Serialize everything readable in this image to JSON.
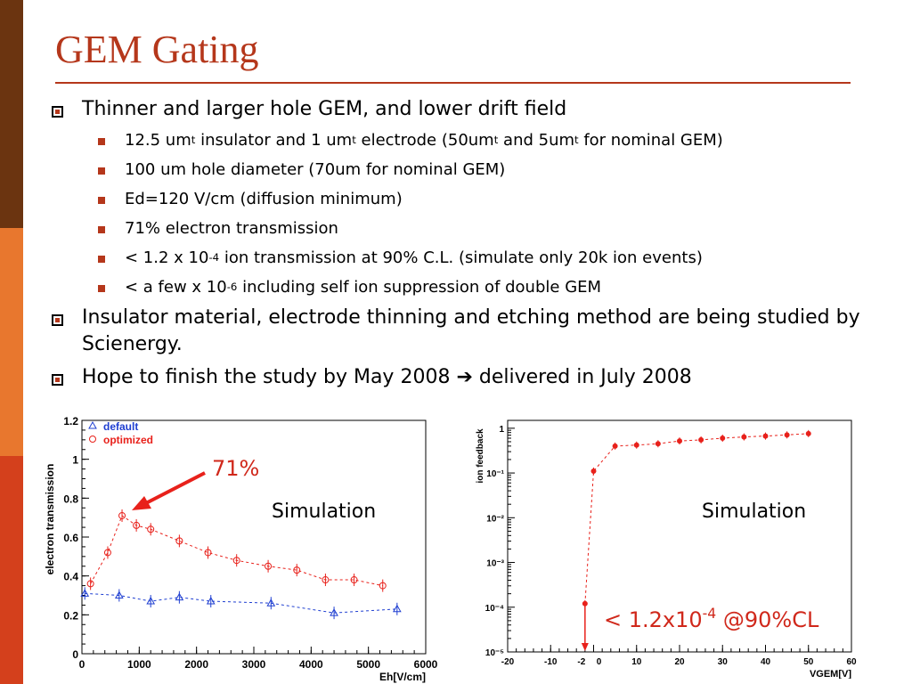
{
  "sidebar_colors": [
    "#6b3410",
    "#e8772e",
    "#d4401c"
  ],
  "title": "GEM Gating",
  "bullets": {
    "b1": "Thinner and larger hole GEM, and lower drift field",
    "s1_a": "12.5 um",
    "s1_sup1": "t",
    "s1_b": " insulator and 1 um",
    "s1_sup2": "t",
    "s1_c": " electrode (50um",
    "s1_sup3": "t",
    "s1_d": " and 5um",
    "s1_sup4": "t",
    "s1_e": " for nominal GEM)",
    "s2": "100 um hole diameter (70um for nominal GEM)",
    "s3": "Ed=120 V/cm (diffusion minimum)",
    "s4": "71% electron transmission",
    "s5_a": "< 1.2 x 10",
    "s5_sup": "-4",
    "s5_b": " ion transmission at 90% C.L. (simulate only 20k ion events)",
    "s6_a": "< a few x 10",
    "s6_sup": "-6",
    "s6_b": " including self ion suppression of double GEM",
    "b2": "Insulator material, electrode thinning and etching method are being studied by Scienergy.",
    "b3_a": "Hope to finish the study by May 2008 ",
    "b3_arrow": "➔",
    "b3_b": " delivered in July 2008"
  },
  "annotations": {
    "pct": "71%",
    "sim_left": "Simulation",
    "sim_right": "Simulation",
    "cl_a": "< 1.2x10",
    "cl_sup": "-4",
    "cl_b": " @90%CL"
  },
  "chart_data": [
    {
      "type": "scatter",
      "xlabel": "Eh[V/cm]",
      "ylabel": "electron transmission",
      "xlim": [
        0,
        6000
      ],
      "ylim": [
        0,
        1.2
      ],
      "x_ticks": [
        "0",
        "1000",
        "2000",
        "3000",
        "4000",
        "5000",
        "6000"
      ],
      "y_ticks": [
        "0",
        "0.2",
        "0.4",
        "0.6",
        "0.8",
        "1",
        "1.2"
      ],
      "legend": "top-left",
      "series": [
        {
          "name": "default",
          "marker": "triangle",
          "color": "#1f3fd1",
          "x": [
            50,
            650,
            1200,
            1700,
            2250,
            3300,
            4400,
            5500
          ],
          "y": [
            0.31,
            0.3,
            0.27,
            0.29,
            0.27,
            0.26,
            0.21,
            0.23
          ]
        },
        {
          "name": "optimized",
          "marker": "circle",
          "color": "#e8211b",
          "x": [
            150,
            450,
            700,
            950,
            1200,
            1700,
            2200,
            2700,
            3250,
            3750,
            4250,
            4750,
            5250
          ],
          "y": [
            0.36,
            0.52,
            0.71,
            0.66,
            0.64,
            0.58,
            0.52,
            0.48,
            0.45,
            0.43,
            0.38,
            0.38,
            0.35
          ]
        }
      ]
    },
    {
      "type": "scatter",
      "xlabel": "VGEM[V]",
      "ylabel": "ion feedback",
      "xlim": [
        -20,
        60
      ],
      "ylim": [
        1e-05,
        1.5
      ],
      "log_y": true,
      "x_ticks": [
        "-20",
        "-10",
        "-2",
        "0",
        "10",
        "20",
        "30",
        "40",
        "50",
        "60"
      ],
      "y_ticks": [
        "10⁻⁵",
        "10⁻⁴",
        "10⁻³",
        "10⁻²",
        "10⁻¹",
        "1"
      ],
      "series": [
        {
          "color": "#e8211b",
          "x": [
            -2,
            0,
            5,
            10,
            15,
            20,
            25,
            30,
            35,
            40,
            45,
            50
          ],
          "y": [
            0.00012,
            0.11,
            0.4,
            0.42,
            0.45,
            0.52,
            0.55,
            0.6,
            0.64,
            0.67,
            0.71,
            0.76
          ]
        }
      ]
    }
  ]
}
